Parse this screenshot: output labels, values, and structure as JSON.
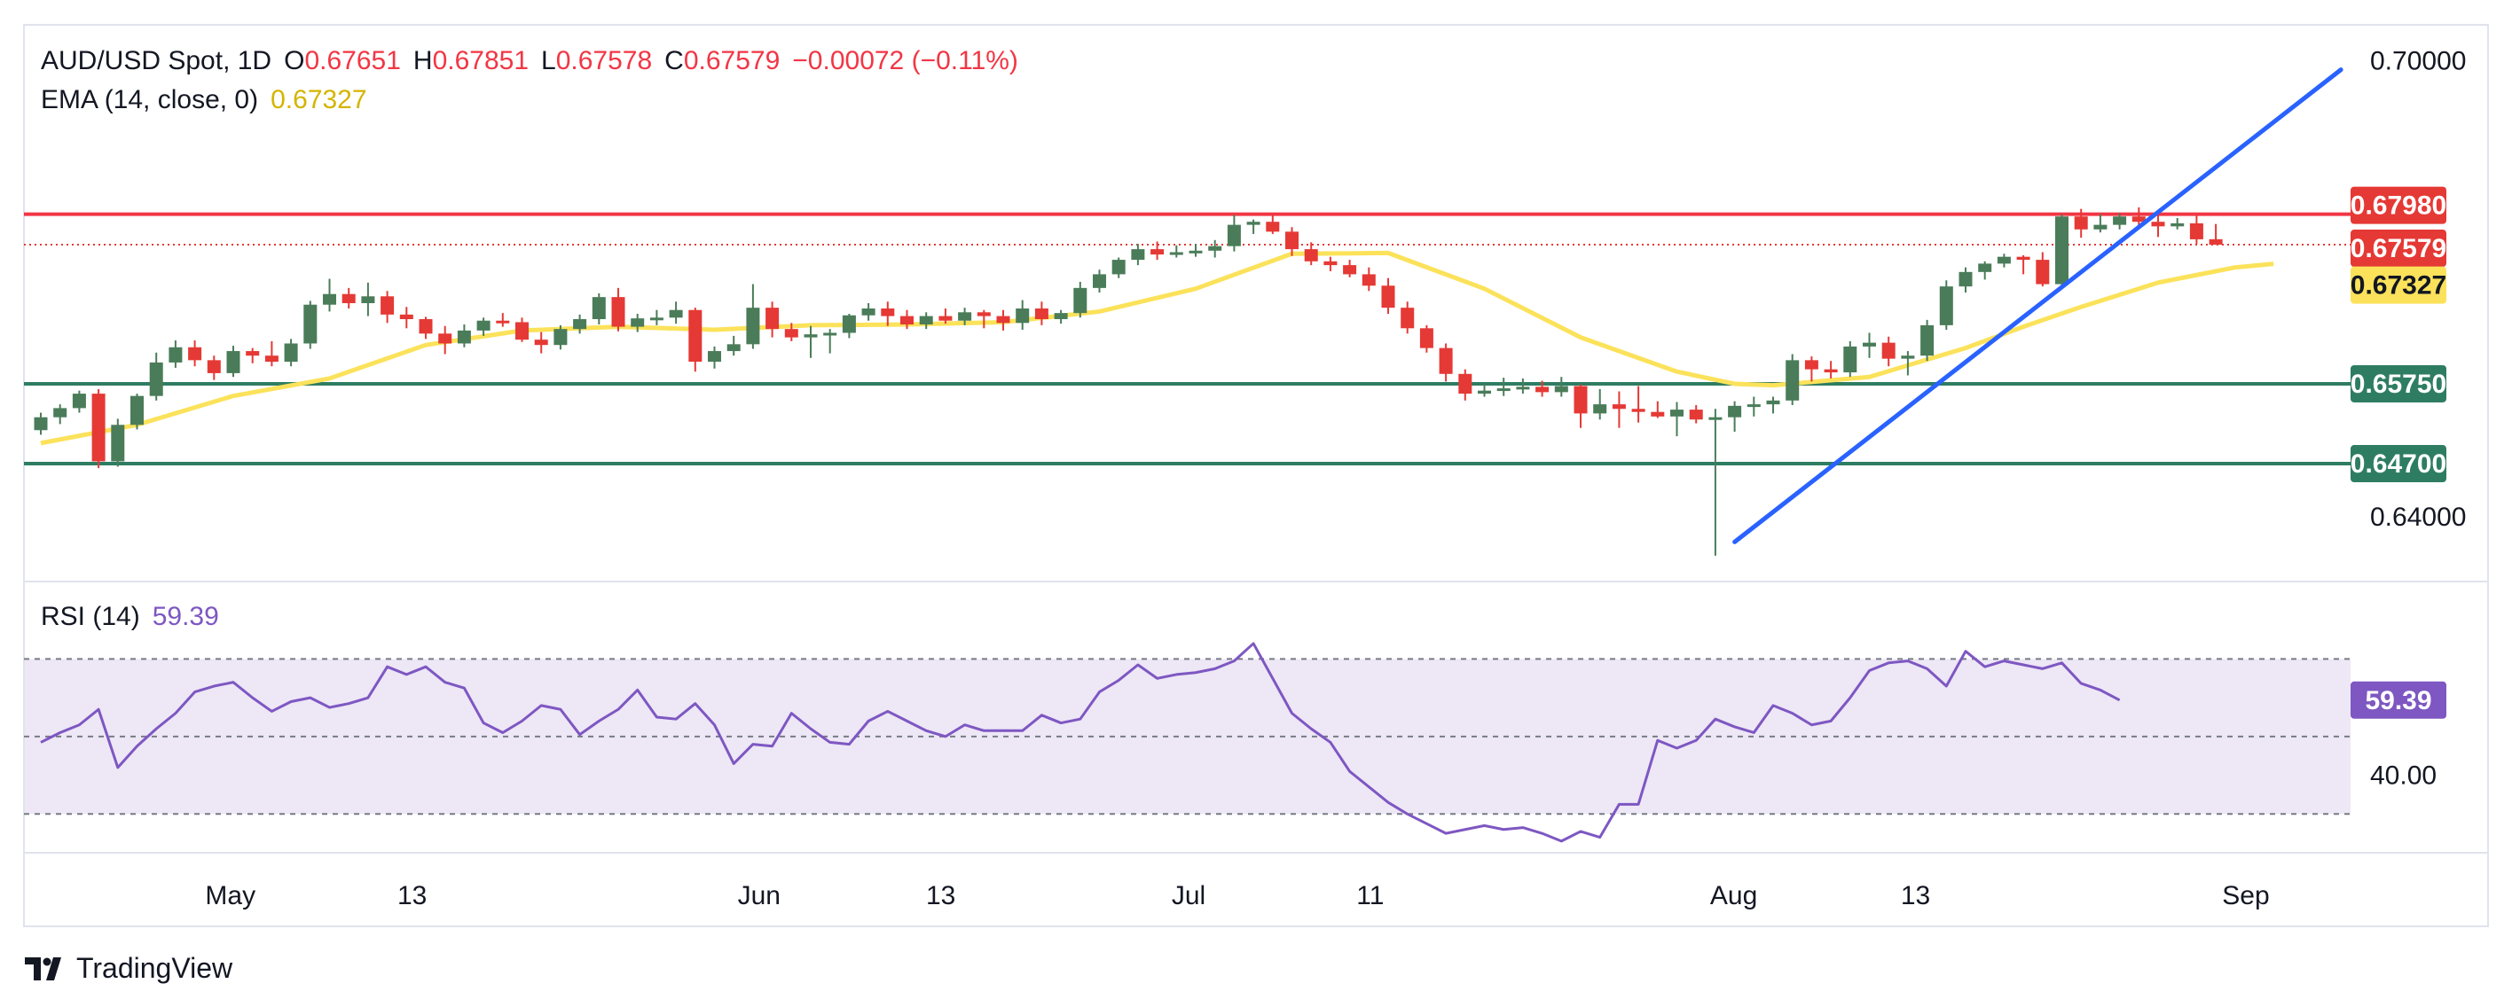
{
  "header": {
    "symbol": "AUD/USD Spot, 1D",
    "open_label": "O",
    "open": "0.67651",
    "high_label": "H",
    "high": "0.67851",
    "low_label": "L",
    "low": "0.67578",
    "close_label": "C",
    "close": "0.67579",
    "change": "−0.00072 (−0.11%)",
    "ema_label": "EMA (14, close, 0)",
    "ema_value": "0.67327"
  },
  "rsi_header": {
    "label": "RSI (14)",
    "value": "59.39"
  },
  "brand": {
    "name": "TradingView"
  },
  "colors": {
    "up": "#4a7c59",
    "down": "#e53935",
    "ema": "#fbe25a",
    "resistance": "#f23645",
    "support": "#2e7d62",
    "trendline": "#2962ff",
    "rsi_line": "#7e57c2",
    "rsi_fill": "#ede7f6",
    "last_price": "#e53935"
  },
  "chart_data": [
    {
      "type": "candlestick",
      "title": "AUD/USD Spot, 1D",
      "price_axis_labels": [
        "0.70000",
        "0.64000"
      ],
      "time_axis_labels": [
        "May",
        "13",
        "Jun",
        "13",
        "Jul",
        "11",
        "Aug",
        "13",
        "Sep"
      ],
      "ylim": [
        0.6315,
        0.7047
      ],
      "levels": [
        {
          "name": "resistance",
          "value": 0.6798,
          "label": "0.67980"
        },
        {
          "name": "support-1",
          "value": 0.6575,
          "label": "0.65750"
        },
        {
          "name": "support-2",
          "value": 0.647,
          "label": "0.64700"
        }
      ],
      "price_labels": [
        {
          "name": "last-price",
          "value": 0.67579,
          "label": "0.67579"
        },
        {
          "name": "ema",
          "value": 0.67327,
          "label": "0.67327"
        }
      ],
      "trendline": {
        "start": [
          88,
          0.6367
        ],
        "end": [
          119.5,
          0.6988
        ]
      },
      "ohlc": [
        [
          0.6514,
          0.6537,
          0.6508,
          0.6531
        ],
        [
          0.6531,
          0.6548,
          0.6522,
          0.6543
        ],
        [
          0.6543,
          0.6566,
          0.6537,
          0.6562
        ],
        [
          0.6562,
          0.6568,
          0.6464,
          0.6473
        ],
        [
          0.6473,
          0.6529,
          0.6466,
          0.6521
        ],
        [
          0.6521,
          0.6562,
          0.6515,
          0.6559
        ],
        [
          0.6559,
          0.6616,
          0.6553,
          0.6603
        ],
        [
          0.6603,
          0.6632,
          0.6596,
          0.6623
        ],
        [
          0.6623,
          0.6632,
          0.6598,
          0.6606
        ],
        [
          0.6606,
          0.6612,
          0.658,
          0.6589
        ],
        [
          0.6589,
          0.6625,
          0.6584,
          0.6618
        ],
        [
          0.6618,
          0.6622,
          0.6602,
          0.6612
        ],
        [
          0.6612,
          0.6631,
          0.6598,
          0.6604
        ],
        [
          0.6604,
          0.6634,
          0.6598,
          0.6628
        ],
        [
          0.6628,
          0.6684,
          0.6621,
          0.6679
        ],
        [
          0.6679,
          0.6713,
          0.667,
          0.6693
        ],
        [
          0.6693,
          0.6701,
          0.6674,
          0.6681
        ],
        [
          0.6681,
          0.6708,
          0.6664,
          0.669
        ],
        [
          0.669,
          0.6697,
          0.6655,
          0.6666
        ],
        [
          0.6666,
          0.6676,
          0.6648,
          0.666
        ],
        [
          0.666,
          0.6663,
          0.6634,
          0.6641
        ],
        [
          0.6641,
          0.6651,
          0.6614,
          0.6628
        ],
        [
          0.6628,
          0.6653,
          0.6623,
          0.6645
        ],
        [
          0.6645,
          0.6662,
          0.6638,
          0.6658
        ],
        [
          0.6658,
          0.6668,
          0.665,
          0.6656
        ],
        [
          0.6656,
          0.6662,
          0.663,
          0.6633
        ],
        [
          0.6633,
          0.6643,
          0.6615,
          0.6626
        ],
        [
          0.6626,
          0.6652,
          0.662,
          0.6647
        ],
        [
          0.6647,
          0.6666,
          0.6641,
          0.666
        ],
        [
          0.666,
          0.6694,
          0.6653,
          0.6689
        ],
        [
          0.6689,
          0.6701,
          0.6644,
          0.665
        ],
        [
          0.665,
          0.6667,
          0.6643,
          0.6661
        ],
        [
          0.6661,
          0.6672,
          0.6652,
          0.6662
        ],
        [
          0.6662,
          0.6683,
          0.6654,
          0.6672
        ],
        [
          0.6672,
          0.6675,
          0.6591,
          0.6604
        ],
        [
          0.6604,
          0.6624,
          0.6595,
          0.6618
        ],
        [
          0.6618,
          0.6638,
          0.6612,
          0.6627
        ],
        [
          0.6627,
          0.6706,
          0.6621,
          0.6675
        ],
        [
          0.6675,
          0.6683,
          0.6636,
          0.6647
        ],
        [
          0.6647,
          0.6655,
          0.6631,
          0.6636
        ],
        [
          0.6636,
          0.6651,
          0.6609,
          0.664
        ],
        [
          0.664,
          0.6647,
          0.6615,
          0.6642
        ],
        [
          0.6642,
          0.6667,
          0.6635,
          0.6665
        ],
        [
          0.6665,
          0.6681,
          0.6658,
          0.6674
        ],
        [
          0.6674,
          0.6683,
          0.6651,
          0.6664
        ],
        [
          0.6664,
          0.6672,
          0.6647,
          0.6653
        ],
        [
          0.6653,
          0.6669,
          0.6647,
          0.6664
        ],
        [
          0.6664,
          0.6674,
          0.6654,
          0.6658
        ],
        [
          0.6658,
          0.6675,
          0.6652,
          0.6669
        ],
        [
          0.6669,
          0.6672,
          0.6648,
          0.6664
        ],
        [
          0.6664,
          0.6672,
          0.6645,
          0.6655
        ],
        [
          0.6655,
          0.6685,
          0.6646,
          0.6674
        ],
        [
          0.6674,
          0.6683,
          0.6652,
          0.666
        ],
        [
          0.666,
          0.6672,
          0.6654,
          0.6668
        ],
        [
          0.6668,
          0.6709,
          0.6662,
          0.6701
        ],
        [
          0.6701,
          0.6725,
          0.6695,
          0.6719
        ],
        [
          0.6719,
          0.6741,
          0.6714,
          0.6738
        ],
        [
          0.6738,
          0.6759,
          0.6731,
          0.6752
        ],
        [
          0.6752,
          0.6762,
          0.6738,
          0.6745
        ],
        [
          0.6745,
          0.6757,
          0.6741,
          0.6748
        ],
        [
          0.6748,
          0.6759,
          0.6742,
          0.675
        ],
        [
          0.675,
          0.6764,
          0.6741,
          0.6756
        ],
        [
          0.6756,
          0.6797,
          0.6749,
          0.6784
        ],
        [
          0.6784,
          0.6791,
          0.6772,
          0.6788
        ],
        [
          0.6788,
          0.6798,
          0.6772,
          0.6775
        ],
        [
          0.6775,
          0.6781,
          0.6743,
          0.6752
        ],
        [
          0.6752,
          0.6761,
          0.6731,
          0.6736
        ],
        [
          0.6736,
          0.6742,
          0.6723,
          0.6731
        ],
        [
          0.6731,
          0.6738,
          0.6715,
          0.6719
        ],
        [
          0.6719,
          0.6728,
          0.6697,
          0.6704
        ],
        [
          0.6704,
          0.6714,
          0.6667,
          0.6675
        ],
        [
          0.6675,
          0.6683,
          0.6641,
          0.6648
        ],
        [
          0.6648,
          0.6652,
          0.6616,
          0.6622
        ],
        [
          0.6622,
          0.6628,
          0.6578,
          0.6588
        ],
        [
          0.6588,
          0.6594,
          0.6553,
          0.6562
        ],
        [
          0.6562,
          0.6575,
          0.6558,
          0.6566
        ],
        [
          0.6566,
          0.6583,
          0.6559,
          0.6569
        ],
        [
          0.6569,
          0.6582,
          0.6562,
          0.6571
        ],
        [
          0.6571,
          0.6579,
          0.6558,
          0.6564
        ],
        [
          0.6564,
          0.6584,
          0.6558,
          0.6572
        ],
        [
          0.6572,
          0.6574,
          0.6517,
          0.6536
        ],
        [
          0.6536,
          0.6568,
          0.6528,
          0.6548
        ],
        [
          0.6548,
          0.6565,
          0.6517,
          0.6542
        ],
        [
          0.6542,
          0.6572,
          0.6524,
          0.6538
        ],
        [
          0.6538,
          0.6552,
          0.653,
          0.6532
        ],
        [
          0.6532,
          0.6551,
          0.6506,
          0.6541
        ],
        [
          0.6541,
          0.6547,
          0.6523,
          0.6528
        ],
        [
          0.6528,
          0.6542,
          0.6349,
          0.6531
        ],
        [
          0.6531,
          0.6552,
          0.6512,
          0.6546
        ],
        [
          0.6546,
          0.6558,
          0.6532,
          0.6548
        ],
        [
          0.6548,
          0.6558,
          0.6536,
          0.6553
        ],
        [
          0.6553,
          0.6614,
          0.6547,
          0.6606
        ],
        [
          0.6606,
          0.6611,
          0.6578,
          0.6594
        ],
        [
          0.6594,
          0.6605,
          0.6582,
          0.659
        ],
        [
          0.659,
          0.6631,
          0.6584,
          0.6624
        ],
        [
          0.6624,
          0.6642,
          0.6609,
          0.6629
        ],
        [
          0.6629,
          0.6637,
          0.6598,
          0.6608
        ],
        [
          0.6608,
          0.6618,
          0.6586,
          0.6612
        ],
        [
          0.6612,
          0.6659,
          0.6605,
          0.6652
        ],
        [
          0.6652,
          0.6711,
          0.6646,
          0.6703
        ],
        [
          0.6703,
          0.6728,
          0.6695,
          0.6722
        ],
        [
          0.6722,
          0.6736,
          0.6712,
          0.6733
        ],
        [
          0.6733,
          0.6746,
          0.6728,
          0.6742
        ],
        [
          0.6742,
          0.6744,
          0.6719,
          0.6738
        ],
        [
          0.6738,
          0.6748,
          0.6703,
          0.6706
        ],
        [
          0.6706,
          0.6798,
          0.6702,
          0.6795
        ],
        [
          0.6795,
          0.6805,
          0.6767,
          0.6778
        ],
        [
          0.6778,
          0.6798,
          0.6774,
          0.6784
        ],
        [
          0.6784,
          0.6799,
          0.6778,
          0.6795
        ],
        [
          0.6795,
          0.6807,
          0.6779,
          0.6788
        ],
        [
          0.6788,
          0.6801,
          0.6768,
          0.6782
        ],
        [
          0.6782,
          0.6793,
          0.6778,
          0.6786
        ],
        [
          0.6786,
          0.6796,
          0.6759,
          0.6765
        ],
        [
          0.67651,
          0.67851,
          0.67578,
          0.67579
        ]
      ],
      "ema14": [
        [
          0,
          0.6497
        ],
        [
          5,
          0.6521
        ],
        [
          10,
          0.6559
        ],
        [
          15,
          0.6582
        ],
        [
          20,
          0.6626
        ],
        [
          25,
          0.6645
        ],
        [
          30,
          0.665
        ],
        [
          35,
          0.6646
        ],
        [
          40,
          0.6652
        ],
        [
          45,
          0.6653
        ],
        [
          50,
          0.6656
        ],
        [
          55,
          0.667
        ],
        [
          60,
          0.67
        ],
        [
          65,
          0.6746
        ],
        [
          70,
          0.6747
        ],
        [
          75,
          0.67
        ],
        [
          80,
          0.6636
        ],
        [
          85,
          0.6591
        ],
        [
          88,
          0.6575
        ],
        [
          90,
          0.6573
        ],
        [
          95,
          0.6584
        ],
        [
          100,
          0.6622
        ],
        [
          103,
          0.665
        ],
        [
          106,
          0.6676
        ],
        [
          110,
          0.6708
        ],
        [
          112,
          0.6718
        ],
        [
          114,
          0.6728
        ],
        [
          116,
          0.67327
        ]
      ]
    },
    {
      "type": "line",
      "title": "RSI (14)",
      "tick_labels": [
        "40.00"
      ],
      "last_value_label": "59.39",
      "ylim": [
        20,
        90
      ],
      "bands": [
        70,
        50,
        30
      ],
      "values": [
        48.5,
        51,
        53,
        57,
        42,
        47.5,
        52,
        56,
        61.5,
        63,
        64,
        60,
        56.5,
        59,
        60,
        57.5,
        58.5,
        60,
        68,
        66,
        68,
        64,
        62.5,
        53.5,
        51,
        54,
        58,
        57,
        50.5,
        54,
        57,
        62,
        55,
        54.5,
        58.5,
        53,
        43,
        48,
        47.5,
        56,
        52,
        48.5,
        48,
        54,
        56.5,
        54,
        51.5,
        50,
        53,
        51.5,
        51.5,
        51.5,
        55.5,
        53.5,
        54.5,
        61.5,
        64.5,
        68.5,
        65,
        66,
        66.5,
        67.5,
        69.5,
        74,
        65,
        56,
        52,
        48.5,
        41,
        37,
        33,
        30,
        27.5,
        25,
        26,
        27,
        26,
        26.5,
        25,
        23,
        25.5,
        24,
        32.5,
        32.5,
        49,
        47,
        49,
        54.5,
        52.5,
        51,
        58,
        56,
        53,
        54,
        60,
        67,
        69,
        69.5,
        67.5,
        63,
        72,
        68,
        69.5,
        68.5,
        67.5,
        69,
        63.7,
        62,
        59.39
      ]
    }
  ]
}
